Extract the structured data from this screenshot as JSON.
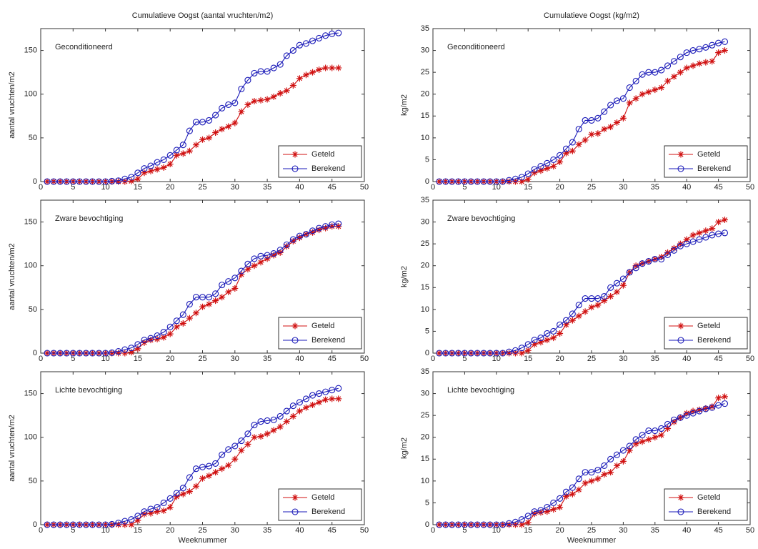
{
  "chart_data": [
    {
      "type": "line",
      "title": "Cumulatieve Oogst (aantal vruchten/m2)",
      "annotation": "Geconditioneerd",
      "ylabel": "aantal vruchten/m2",
      "x": [
        1,
        2,
        3,
        4,
        5,
        6,
        7,
        8,
        9,
        10,
        11,
        12,
        13,
        14,
        15,
        16,
        17,
        18,
        19,
        20,
        21,
        22,
        23,
        24,
        25,
        26,
        27,
        28,
        29,
        30,
        31,
        32,
        33,
        34,
        35,
        36,
        37,
        38,
        39,
        40,
        41,
        42,
        43,
        44,
        45,
        46
      ],
      "xlim": [
        0,
        50
      ],
      "xticks": [
        0,
        5,
        10,
        15,
        20,
        25,
        30,
        35,
        40,
        45,
        50
      ],
      "ylim": [
        0,
        175
      ],
      "yticks": [
        0,
        50,
        100,
        150
      ],
      "legend": "lower right",
      "series": [
        {
          "name": "Geteld",
          "color": "#d01010",
          "marker": "star",
          "values": [
            0,
            0,
            0,
            0,
            0,
            0,
            0,
            0,
            0,
            0,
            0,
            0,
            0,
            0.5,
            3,
            10,
            12,
            14,
            16,
            20,
            30,
            32,
            35,
            42,
            48,
            50,
            56,
            60,
            63,
            67,
            80,
            88,
            92,
            93,
            94,
            97,
            101,
            104,
            110,
            118,
            122,
            125,
            128,
            130,
            130,
            130
          ]
        },
        {
          "name": "Berekend",
          "color": "#1a1ab8",
          "marker": "circle",
          "values": [
            0,
            0,
            0,
            0,
            0,
            0,
            0,
            0,
            0,
            0,
            0.5,
            1,
            3,
            5,
            10,
            15,
            18,
            22,
            25,
            30,
            36,
            42,
            58,
            68,
            68,
            70,
            76,
            84,
            88,
            90,
            106,
            116,
            124,
            126,
            126,
            130,
            134,
            144,
            150,
            156,
            158,
            161,
            164,
            167,
            169,
            170
          ]
        }
      ]
    },
    {
      "type": "line",
      "annotation": "Zware bevochtiging",
      "ylabel": "aantal vruchten/m2",
      "x": [
        1,
        2,
        3,
        4,
        5,
        6,
        7,
        8,
        9,
        10,
        11,
        12,
        13,
        14,
        15,
        16,
        17,
        18,
        19,
        20,
        21,
        22,
        23,
        24,
        25,
        26,
        27,
        28,
        29,
        30,
        31,
        32,
        33,
        34,
        35,
        36,
        37,
        38,
        39,
        40,
        41,
        42,
        43,
        44,
        45,
        46
      ],
      "xlim": [
        0,
        50
      ],
      "xticks": [
        0,
        5,
        10,
        15,
        20,
        25,
        30,
        35,
        40,
        45,
        50
      ],
      "ylim": [
        0,
        175
      ],
      "yticks": [
        0,
        50,
        100,
        150
      ],
      "legend": "lower right",
      "series": [
        {
          "name": "Geteld",
          "color": "#d01010",
          "marker": "star",
          "values": [
            0,
            0,
            0,
            0,
            0,
            0,
            0,
            0,
            0,
            0,
            0,
            0,
            0,
            1,
            5,
            12,
            15,
            16,
            18,
            22,
            30,
            34,
            40,
            46,
            53,
            56,
            60,
            64,
            70,
            74,
            90,
            96,
            100,
            104,
            108,
            112,
            115,
            122,
            128,
            132,
            136,
            138,
            141,
            143,
            145,
            145
          ]
        },
        {
          "name": "Berekend",
          "color": "#1a1ab8",
          "marker": "circle",
          "values": [
            0,
            0,
            0,
            0,
            0,
            0,
            0,
            0,
            0,
            0,
            0.5,
            2,
            4,
            6,
            10,
            15,
            17,
            20,
            24,
            30,
            37,
            44,
            56,
            64,
            64,
            64,
            68,
            78,
            82,
            86,
            94,
            102,
            108,
            111,
            112,
            114,
            118,
            124,
            130,
            134,
            136,
            140,
            143,
            145,
            147,
            148
          ]
        }
      ]
    },
    {
      "type": "line",
      "annotation": "Lichte bevochtiging",
      "ylabel": "aantal vruchten/m2",
      "xlabel": "Weeknummer",
      "x": [
        1,
        2,
        3,
        4,
        5,
        6,
        7,
        8,
        9,
        10,
        11,
        12,
        13,
        14,
        15,
        16,
        17,
        18,
        19,
        20,
        21,
        22,
        23,
        24,
        25,
        26,
        27,
        28,
        29,
        30,
        31,
        32,
        33,
        34,
        35,
        36,
        37,
        38,
        39,
        40,
        41,
        42,
        43,
        44,
        45,
        46
      ],
      "xlim": [
        0,
        50
      ],
      "xticks": [
        0,
        5,
        10,
        15,
        20,
        25,
        30,
        35,
        40,
        45,
        50
      ],
      "ylim": [
        0,
        175
      ],
      "yticks": [
        0,
        50,
        100,
        150
      ],
      "legend": "lower right",
      "series": [
        {
          "name": "Geteld",
          "color": "#d01010",
          "marker": "star",
          "values": [
            0,
            0,
            0,
            0,
            0,
            0,
            0,
            0,
            0,
            0,
            0,
            0,
            0,
            0,
            5,
            12,
            13,
            15,
            16,
            20,
            32,
            35,
            38,
            44,
            53,
            56,
            60,
            64,
            68,
            75,
            85,
            92,
            100,
            101,
            104,
            108,
            112,
            118,
            124,
            130,
            134,
            137,
            140,
            143,
            144,
            144
          ]
        },
        {
          "name": "Berekend",
          "color": "#1a1ab8",
          "marker": "circle",
          "values": [
            0,
            0,
            0,
            0,
            0,
            0,
            0,
            0,
            0,
            0,
            0.5,
            2,
            4,
            6,
            10,
            15,
            18,
            20,
            25,
            30,
            36,
            42,
            54,
            64,
            66,
            67,
            70,
            80,
            86,
            90,
            96,
            104,
            114,
            118,
            119,
            120,
            124,
            130,
            136,
            140,
            144,
            148,
            150,
            152,
            154,
            156
          ]
        }
      ]
    },
    {
      "type": "line",
      "title": "Cumulatieve Oogst (kg/m2)",
      "annotation": "Geconditioneerd",
      "ylabel": "kg/m2",
      "x": [
        1,
        2,
        3,
        4,
        5,
        6,
        7,
        8,
        9,
        10,
        11,
        12,
        13,
        14,
        15,
        16,
        17,
        18,
        19,
        20,
        21,
        22,
        23,
        24,
        25,
        26,
        27,
        28,
        29,
        30,
        31,
        32,
        33,
        34,
        35,
        36,
        37,
        38,
        39,
        40,
        41,
        42,
        43,
        44,
        45,
        46
      ],
      "xlim": [
        0,
        50
      ],
      "xticks": [
        0,
        5,
        10,
        15,
        20,
        25,
        30,
        35,
        40,
        45,
        50
      ],
      "ylim": [
        0,
        35
      ],
      "yticks": [
        0,
        5,
        10,
        15,
        20,
        25,
        30,
        35
      ],
      "legend": "lower right",
      "series": [
        {
          "name": "Geteld",
          "color": "#d01010",
          "marker": "star",
          "values": [
            0,
            0,
            0,
            0,
            0,
            0,
            0,
            0,
            0,
            0,
            0,
            0,
            0,
            0,
            0.5,
            2,
            2.5,
            3,
            3.5,
            4.5,
            6.5,
            7,
            8.5,
            9.5,
            10.8,
            11,
            12,
            12.5,
            13.5,
            14.5,
            18,
            19,
            20,
            20.5,
            21,
            21.5,
            23,
            24,
            25,
            26,
            26.5,
            27,
            27.3,
            27.5,
            29.5,
            30
          ]
        },
        {
          "name": "Berekend",
          "color": "#1a1ab8",
          "marker": "circle",
          "values": [
            0,
            0,
            0,
            0,
            0,
            0,
            0,
            0,
            0,
            0,
            0,
            0.3,
            0.6,
            1,
            1.8,
            2.8,
            3.5,
            4.2,
            5,
            6,
            7.5,
            9,
            12,
            14,
            14,
            14.5,
            16,
            17.5,
            18.5,
            19,
            21.5,
            23,
            24.5,
            25,
            25,
            25.5,
            26.5,
            27.5,
            28.5,
            29.5,
            30,
            30.3,
            30.7,
            31.2,
            31.7,
            32
          ]
        }
      ]
    },
    {
      "type": "line",
      "annotation": "Zware bevochtiging",
      "ylabel": "kg/m2",
      "x": [
        1,
        2,
        3,
        4,
        5,
        6,
        7,
        8,
        9,
        10,
        11,
        12,
        13,
        14,
        15,
        16,
        17,
        18,
        19,
        20,
        21,
        22,
        23,
        24,
        25,
        26,
        27,
        28,
        29,
        30,
        31,
        32,
        33,
        34,
        35,
        36,
        37,
        38,
        39,
        40,
        41,
        42,
        43,
        44,
        45,
        46
      ],
      "xlim": [
        0,
        50
      ],
      "xticks": [
        0,
        5,
        10,
        15,
        20,
        25,
        30,
        35,
        40,
        45,
        50
      ],
      "ylim": [
        0,
        35
      ],
      "yticks": [
        0,
        5,
        10,
        15,
        20,
        25,
        30,
        35
      ],
      "legend": "lower right",
      "series": [
        {
          "name": "Geteld",
          "color": "#d01010",
          "marker": "star",
          "values": [
            0,
            0,
            0,
            0,
            0,
            0,
            0,
            0,
            0,
            0,
            0,
            0,
            0,
            0,
            0.6,
            2,
            2.5,
            3,
            3.5,
            4.5,
            6.5,
            7.5,
            8.5,
            9.5,
            10.5,
            11,
            12,
            13,
            14,
            15.5,
            18.5,
            20,
            20.5,
            21,
            21.5,
            22,
            23,
            24,
            25,
            26,
            27,
            27.5,
            28,
            28.5,
            30,
            30.5
          ]
        },
        {
          "name": "Berekend",
          "color": "#1a1ab8",
          "marker": "circle",
          "values": [
            0,
            0,
            0,
            0,
            0,
            0,
            0,
            0,
            0,
            0,
            0,
            0.3,
            0.6,
            1.2,
            2,
            3,
            3.5,
            4.5,
            5,
            6.5,
            7.5,
            9,
            11,
            12.5,
            12.5,
            12.5,
            13,
            15,
            16,
            17,
            18.5,
            19.5,
            20.5,
            21,
            21.5,
            21.5,
            22.5,
            23.5,
            24.5,
            25,
            25.5,
            26,
            26.5,
            27,
            27.3,
            27.5
          ]
        }
      ]
    },
    {
      "type": "line",
      "annotation": "Lichte bevochtiging",
      "ylabel": "kg/m2",
      "xlabel": "Weeknummer",
      "x": [
        1,
        2,
        3,
        4,
        5,
        6,
        7,
        8,
        9,
        10,
        11,
        12,
        13,
        14,
        15,
        16,
        17,
        18,
        19,
        20,
        21,
        22,
        23,
        24,
        25,
        26,
        27,
        28,
        29,
        30,
        31,
        32,
        33,
        34,
        35,
        36,
        37,
        38,
        39,
        40,
        41,
        42,
        43,
        44,
        45,
        46
      ],
      "xlim": [
        0,
        50
      ],
      "xticks": [
        0,
        5,
        10,
        15,
        20,
        25,
        30,
        35,
        40,
        45,
        50
      ],
      "ylim": [
        0,
        35
      ],
      "yticks": [
        0,
        5,
        10,
        15,
        20,
        25,
        30,
        35
      ],
      "legend": "lower right",
      "series": [
        {
          "name": "Geteld",
          "color": "#d01010",
          "marker": "star",
          "values": [
            0,
            0,
            0,
            0,
            0,
            0,
            0,
            0,
            0,
            0,
            0,
            0,
            0,
            0,
            0.5,
            2.5,
            2.8,
            3,
            3.5,
            4,
            6.5,
            7,
            8,
            9.5,
            10,
            10.5,
            11.5,
            12,
            13.5,
            14.5,
            17,
            18.5,
            19,
            19.5,
            20,
            20.5,
            22,
            23.5,
            24.5,
            25.5,
            26,
            26.3,
            26.6,
            27,
            29,
            29.3
          ]
        },
        {
          "name": "Berekend",
          "color": "#1a1ab8",
          "marker": "circle",
          "values": [
            0,
            0,
            0,
            0,
            0,
            0,
            0,
            0,
            0,
            0,
            0,
            0.3,
            0.6,
            1.2,
            2,
            3,
            3.3,
            4,
            5,
            6,
            7.5,
            8.5,
            10.5,
            12,
            12,
            12.5,
            13.5,
            15,
            16,
            17,
            18,
            19.5,
            20.5,
            21.5,
            21.5,
            22,
            23,
            24,
            24.5,
            25,
            25.5,
            26,
            26.5,
            26.8,
            27.3,
            27.7
          ]
        }
      ]
    }
  ]
}
